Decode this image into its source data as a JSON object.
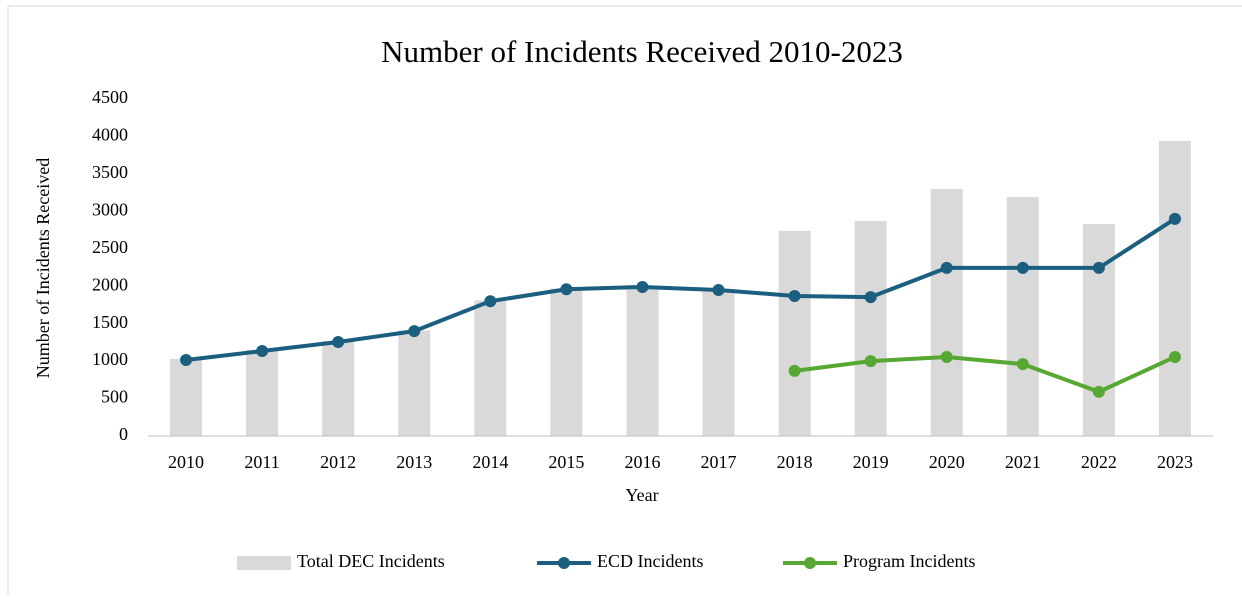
{
  "chart_data": {
    "type": "combo",
    "title": "Number of Incidents Received 2010-2023",
    "x_label": "Year",
    "y_label": "Number of Incidents Received",
    "categories": [
      "2010",
      "2011",
      "2012",
      "2013",
      "2014",
      "2015",
      "2016",
      "2017",
      "2018",
      "2019",
      "2020",
      "2021",
      "2022",
      "2023"
    ],
    "series": [
      {
        "name": "Total DEC Incidents",
        "type": "bar",
        "color": "#d9d9d9",
        "values": [
          1030,
          1150,
          1270,
          1410,
          1810,
          1970,
          2000,
          1960,
          2740,
          2870,
          3300,
          3190,
          2830,
          3940
        ]
      },
      {
        "name": "ECD Incidents",
        "type": "line",
        "color": "#1b5e80",
        "values": [
          1015,
          1135,
          1255,
          1400,
          1800,
          1960,
          1990,
          1950,
          1870,
          1855,
          2245,
          2245,
          2245,
          2900
        ]
      },
      {
        "name": "Program Incidents",
        "type": "line",
        "color": "#56a832",
        "values": [
          null,
          null,
          null,
          null,
          null,
          null,
          null,
          null,
          870,
          1000,
          1055,
          960,
          590,
          1055
        ]
      }
    ],
    "ylim": [
      0,
      4500
    ],
    "yticks": [
      0,
      500,
      1000,
      1500,
      2000,
      2500,
      3000,
      3500,
      4000,
      4500
    ],
    "legend": "bottom"
  }
}
